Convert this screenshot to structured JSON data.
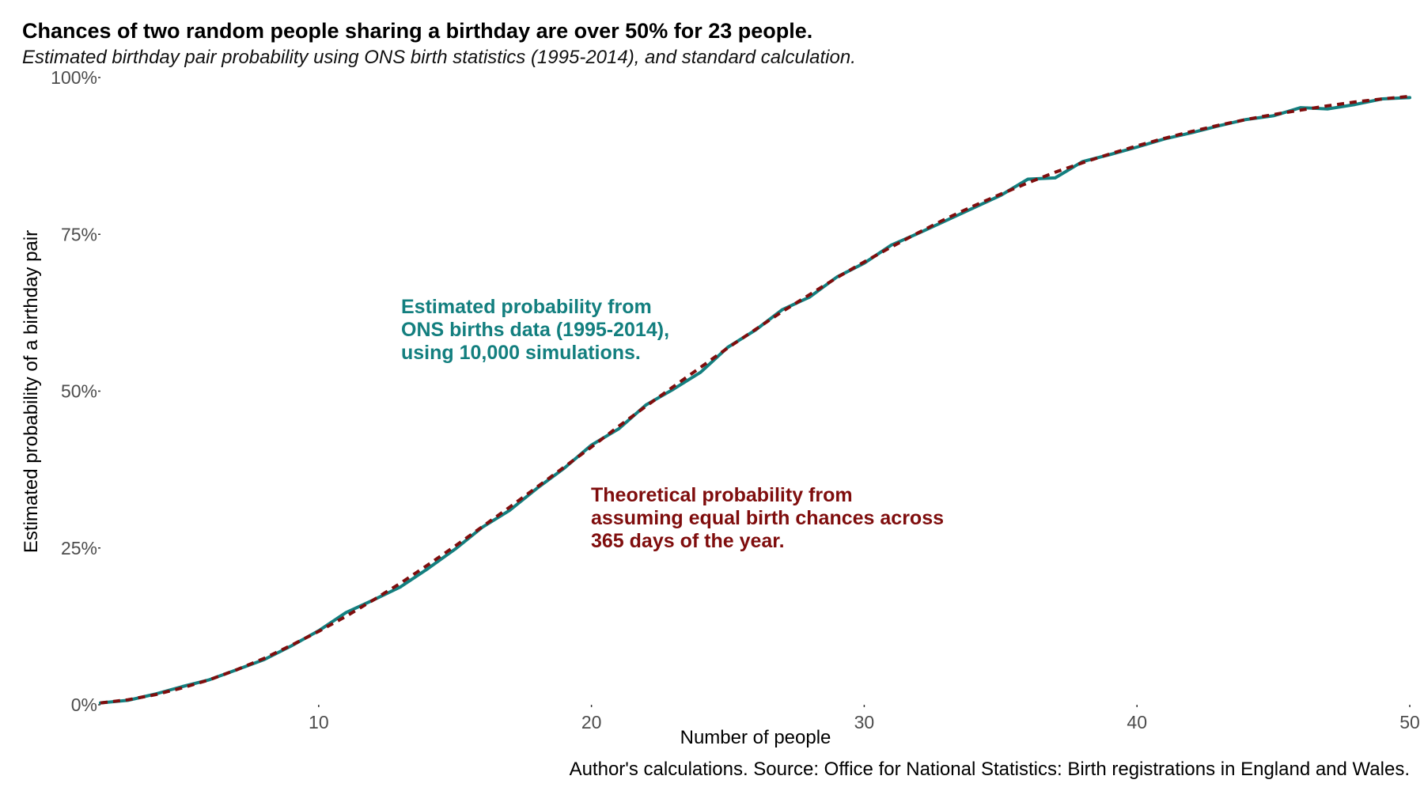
{
  "chart_data": {
    "type": "line",
    "title": "Chances of two random people sharing a birthday are over 50% for 23 people.",
    "subtitle": "Estimated birthday pair probability using ONS birth statistics (1995-2014), and standard calculation.",
    "xlabel": "Number of people",
    "ylabel": "Estimated probability of a birthday pair",
    "caption": "Author's calculations. Source: Office for National Statistics: Birth registrations in England and Wales.",
    "xlim": [
      2,
      50
    ],
    "ylim": [
      0,
      1
    ],
    "x_ticks": [
      10,
      20,
      30,
      40,
      50
    ],
    "y_ticks": [
      {
        "value": 0,
        "label": "0%"
      },
      {
        "value": 0.25,
        "label": "25%"
      },
      {
        "value": 0.5,
        "label": "50%"
      },
      {
        "value": 0.75,
        "label": "75%"
      },
      {
        "value": 1,
        "label": "100%"
      }
    ],
    "grid": false,
    "legend": "none",
    "x": [
      2,
      3,
      4,
      5,
      6,
      7,
      8,
      9,
      10,
      11,
      12,
      13,
      14,
      15,
      16,
      17,
      18,
      19,
      20,
      21,
      22,
      23,
      24,
      25,
      26,
      27,
      28,
      29,
      30,
      31,
      32,
      33,
      34,
      35,
      36,
      37,
      38,
      39,
      40,
      41,
      42,
      43,
      44,
      45,
      46,
      47,
      48,
      49,
      50
    ],
    "series": [
      {
        "color": "#137f7f",
        "style": "solid",
        "values": [
          0.003,
          0.007,
          0.017,
          0.029,
          0.04,
          0.056,
          0.072,
          0.094,
          0.118,
          0.147,
          0.167,
          0.188,
          0.217,
          0.248,
          0.283,
          0.31,
          0.345,
          0.377,
          0.414,
          0.44,
          0.478,
          0.503,
          0.53,
          0.57,
          0.597,
          0.63,
          0.65,
          0.682,
          0.704,
          0.733,
          0.752,
          0.772,
          0.792,
          0.812,
          0.838,
          0.84,
          0.866,
          0.877,
          0.889,
          0.902,
          0.912,
          0.923,
          0.933,
          0.939,
          0.952,
          0.95,
          0.957,
          0.966,
          0.968
        ]
      },
      {
        "color": "#7f0d0d",
        "style": "dashed",
        "values": [
          0.003,
          0.008,
          0.016,
          0.027,
          0.04,
          0.056,
          0.074,
          0.095,
          0.117,
          0.141,
          0.167,
          0.194,
          0.223,
          0.253,
          0.284,
          0.315,
          0.347,
          0.379,
          0.411,
          0.444,
          0.476,
          0.507,
          0.538,
          0.569,
          0.598,
          0.627,
          0.654,
          0.681,
          0.706,
          0.73,
          0.753,
          0.775,
          0.795,
          0.814,
          0.832,
          0.849,
          0.864,
          0.878,
          0.891,
          0.903,
          0.914,
          0.924,
          0.933,
          0.941,
          0.948,
          0.955,
          0.961,
          0.966,
          0.97
        ]
      }
    ],
    "annotations": [
      {
        "color": "#137f7f",
        "lines": [
          "Estimated probability from",
          "ONS births data (1995-2014),",
          "using 10,000 simulations."
        ]
      },
      {
        "color": "#7f0d0d",
        "lines": [
          "Theoretical probability from",
          "assuming equal birth chances across",
          "365 days of the year."
        ]
      }
    ]
  }
}
